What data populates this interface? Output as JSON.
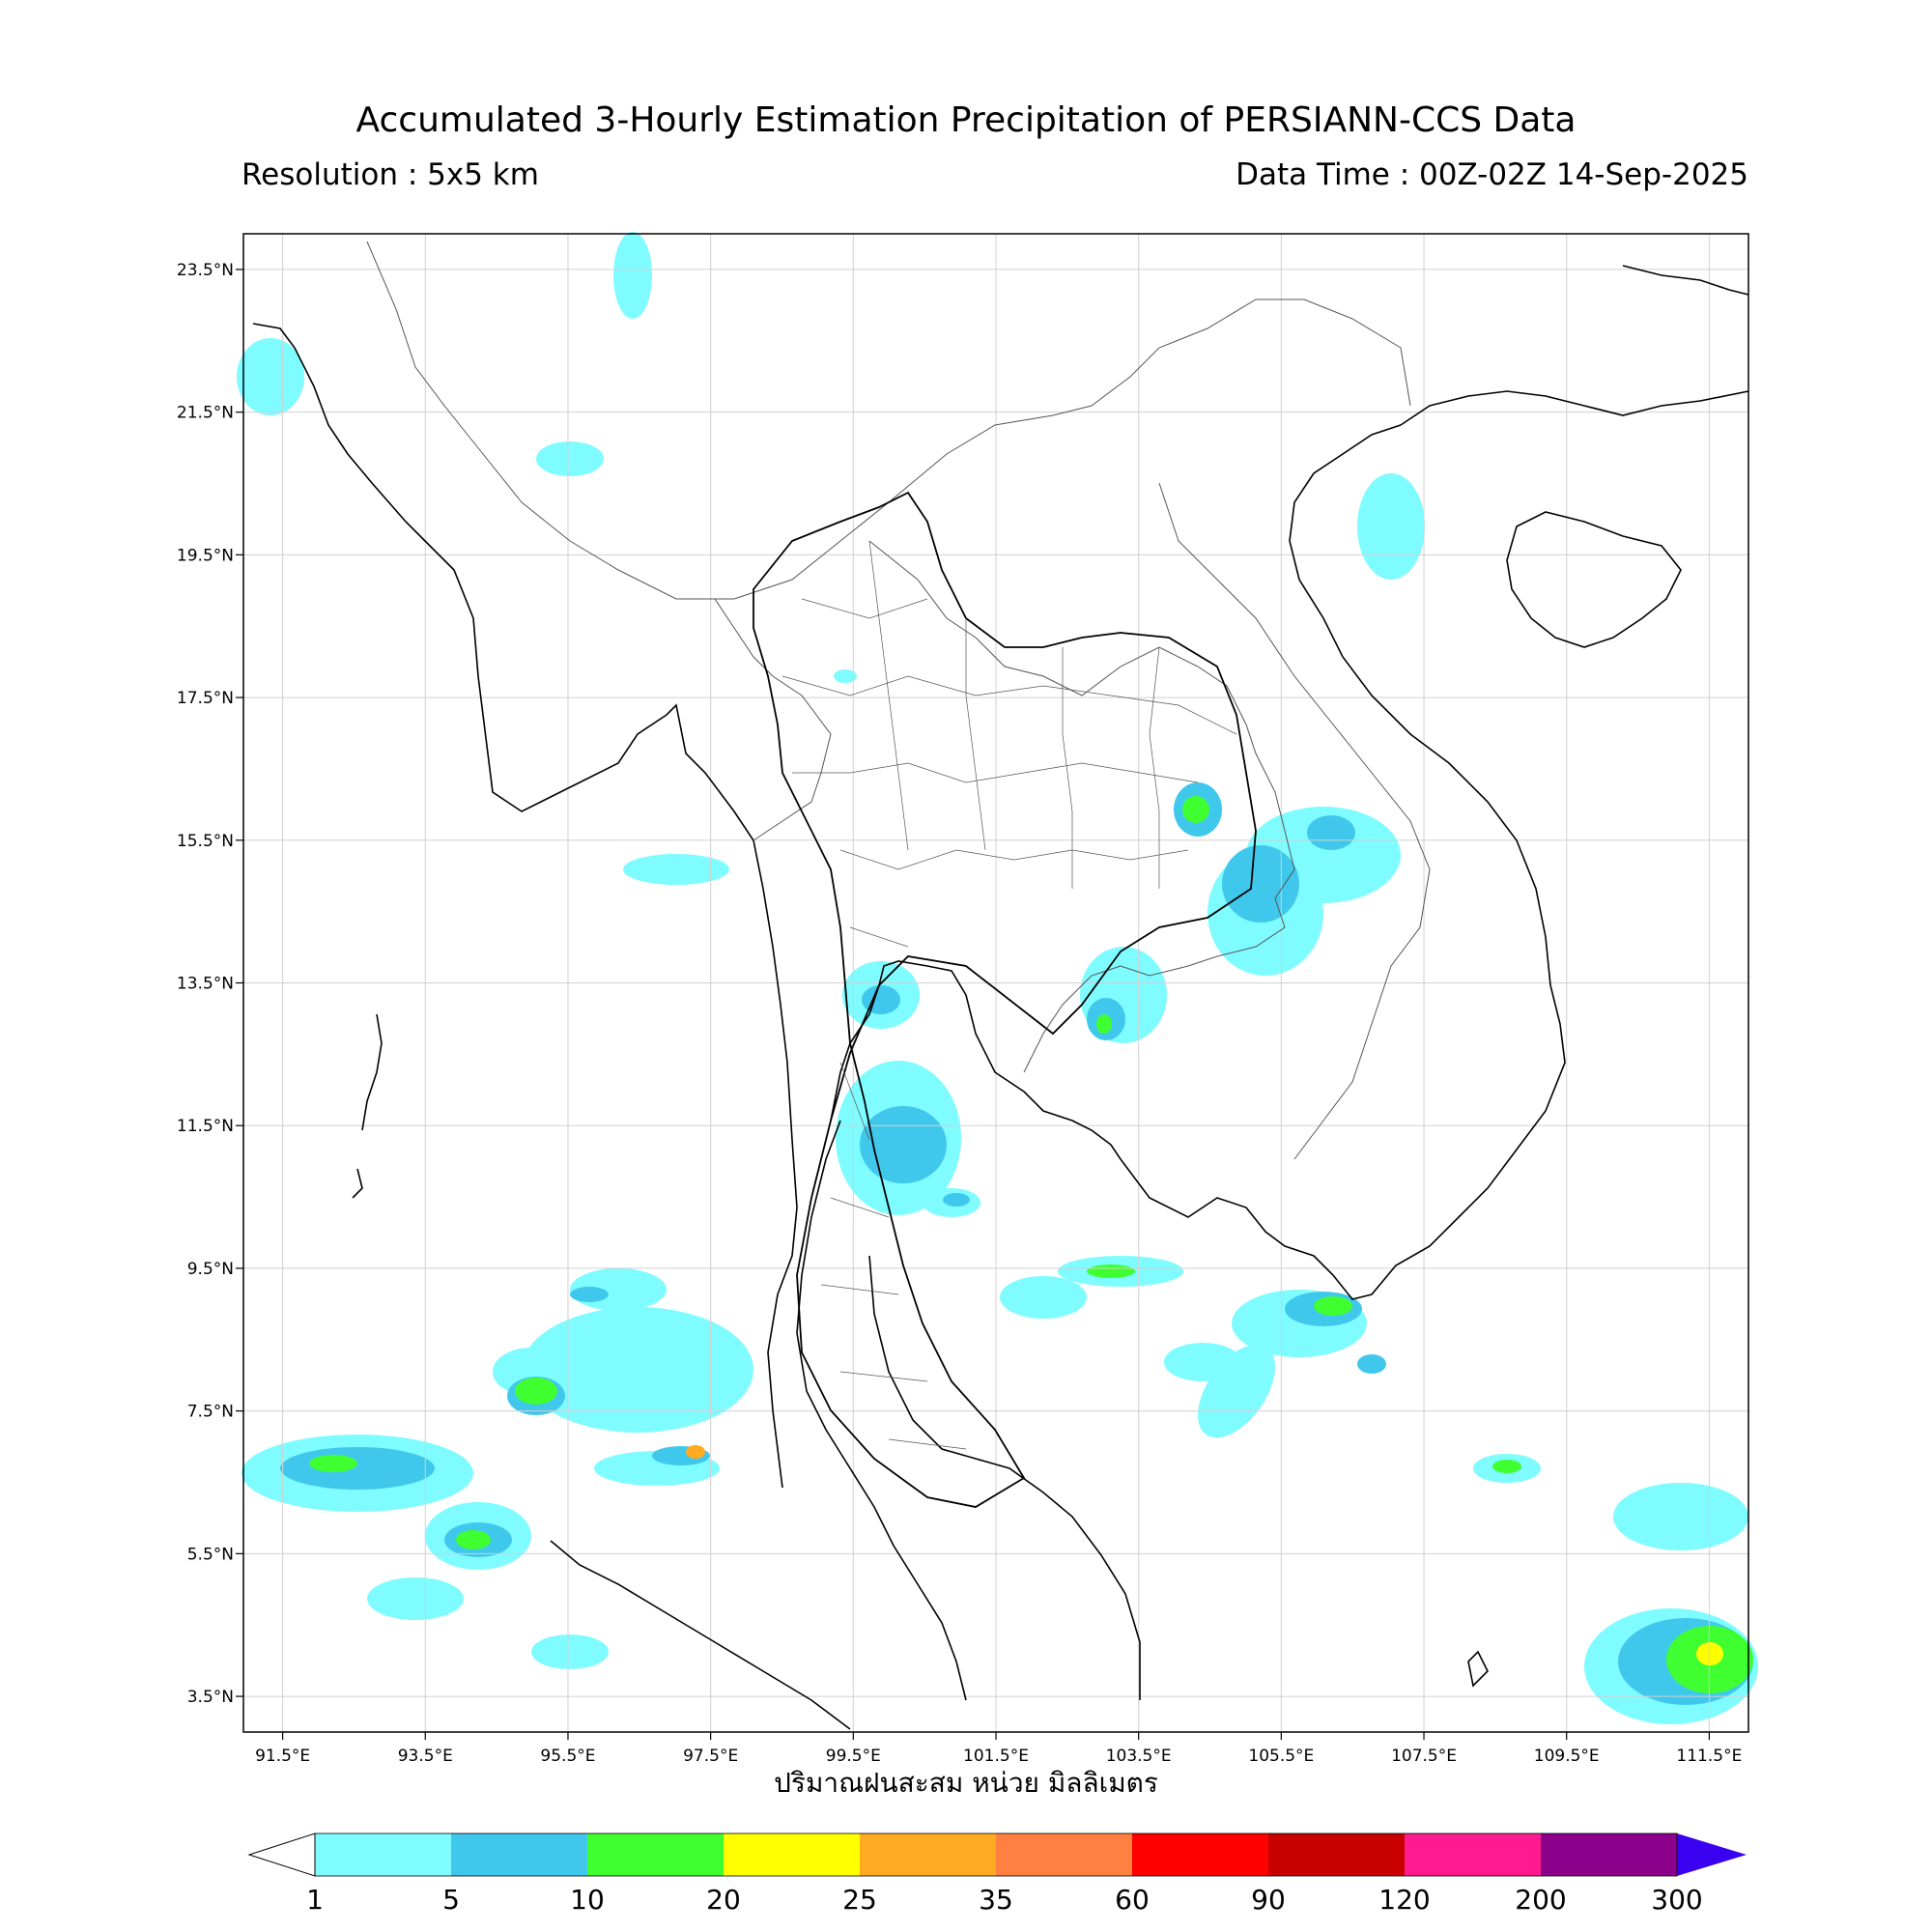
{
  "header": {
    "title": "Accumulated 3-Hourly Estimation Precipitation of PERSIANN-CCS Data",
    "resolution": "Resolution : 5x5 km",
    "data_time": "Data Time : 00Z-02Z 14-Sep-2025"
  },
  "axes": {
    "lon_ticks": [
      "91.5°E",
      "93.5°E",
      "95.5°E",
      "97.5°E",
      "99.5°E",
      "101.5°E",
      "103.5°E",
      "105.5°E",
      "107.5°E",
      "109.5°E",
      "111.5°E"
    ],
    "lat_ticks": [
      "23.5°N",
      "21.5°N",
      "19.5°N",
      "17.5°N",
      "15.5°N",
      "13.5°N",
      "11.5°N",
      "9.5°N",
      "7.5°N",
      "5.5°N",
      "3.5°N"
    ],
    "lon_range": [
      90.95,
      112.05
    ],
    "lat_range": [
      3.0,
      24.0
    ],
    "grid": true,
    "xlabel": "ปริมาณฝนสะสม หน่วย มิลลิเมตร"
  },
  "colorbar": {
    "labels": [
      "1",
      "5",
      "10",
      "20",
      "25",
      "35",
      "60",
      "90",
      "120",
      "200",
      "300"
    ],
    "colors": [
      "#7ffcff",
      "#40c8ec",
      "#40ff30",
      "#ffff00",
      "#ffaa20",
      "#ff8040",
      "#ff0000",
      "#c80000",
      "#ff1a90",
      "#8c008c"
    ],
    "under_color": "#ffffff",
    "over_color": "#3a00f0",
    "extend": "both",
    "orientation": "horizontal",
    "unit": "mm"
  },
  "colors": {
    "coastline": "#000000",
    "border": "#555555",
    "grid": "#d0d0d0"
  }
}
